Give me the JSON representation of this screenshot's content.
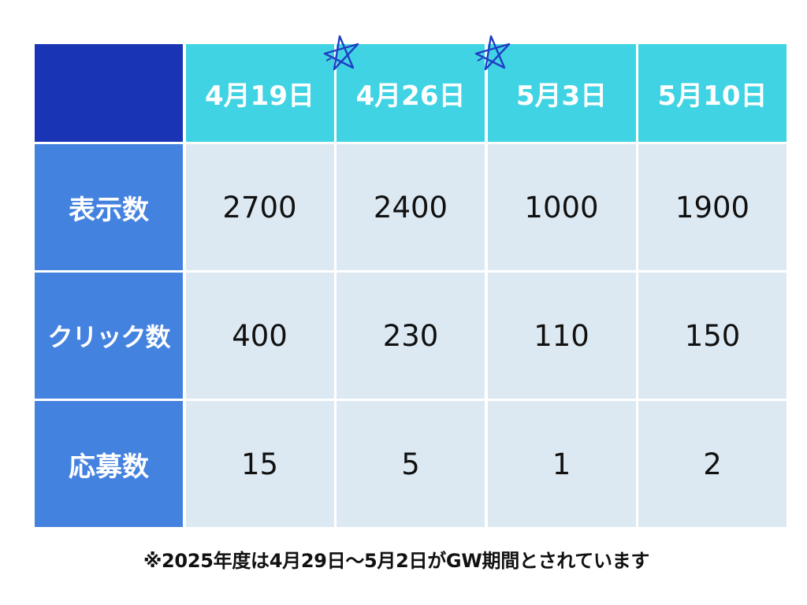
{
  "chart_data": {
    "type": "table",
    "columns": [
      "4月19日",
      "4月26日",
      "5月3日",
      "5月10日"
    ],
    "rows": [
      {
        "label": "表示数",
        "values": [
          2700,
          2400,
          1000,
          1900
        ]
      },
      {
        "label": "クリック数",
        "values": [
          400,
          230,
          110,
          150
        ]
      },
      {
        "label": "応募数",
        "values": [
          15,
          5,
          1,
          2
        ]
      }
    ],
    "highlighted_columns": [
      "4月26日",
      "5月3日"
    ],
    "marker_icon": "star-doodle-icon"
  },
  "footnote": "※2025年度は4月29日～5月2日がGW期間とされています",
  "colors": {
    "corner": "#1a34b6",
    "column_header": "#40d3e3",
    "row_header": "#4482e0",
    "cell": "#dde9f2",
    "star": "#1f3fc4"
  }
}
